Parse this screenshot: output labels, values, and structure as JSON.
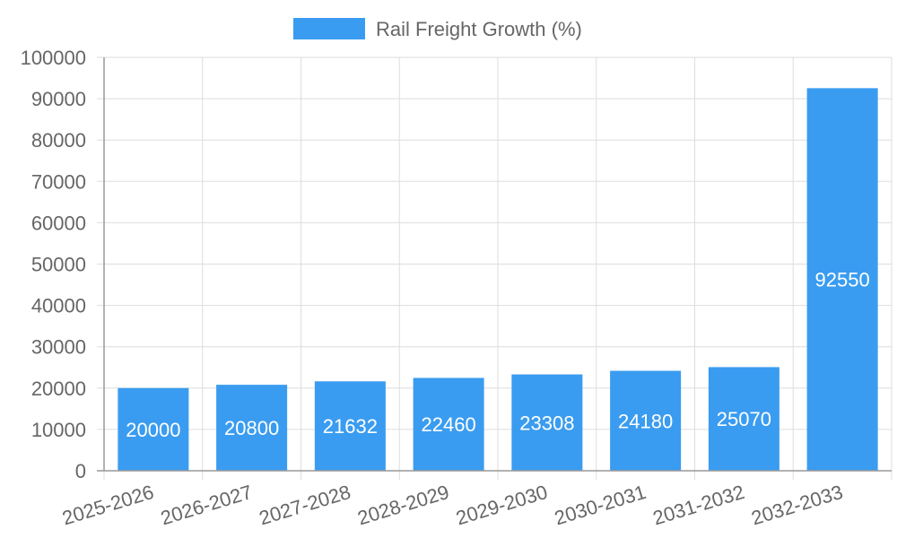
{
  "chart_data": {
    "type": "bar",
    "categories": [
      "2025-2026",
      "2026-2027",
      "2027-2028",
      "2028-2029",
      "2029-2030",
      "2030-2031",
      "2031-2032",
      "2032-2033"
    ],
    "series": [
      {
        "name": "Rail Freight Growth (%)",
        "values": [
          20000,
          20800,
          21632,
          22460,
          23308,
          24180,
          25070,
          92550
        ]
      }
    ],
    "ylim": [
      0,
      100000
    ],
    "ytick_step": 10000,
    "yticks": [
      "0",
      "10000",
      "20000",
      "30000",
      "40000",
      "50000",
      "60000",
      "70000",
      "80000",
      "90000",
      "100000"
    ],
    "legend_position": "top-center",
    "grid": true,
    "colors": {
      "bar": "#3a9cf0",
      "grid": "#dddddd",
      "axis": "#999999",
      "text": "#666666"
    }
  }
}
